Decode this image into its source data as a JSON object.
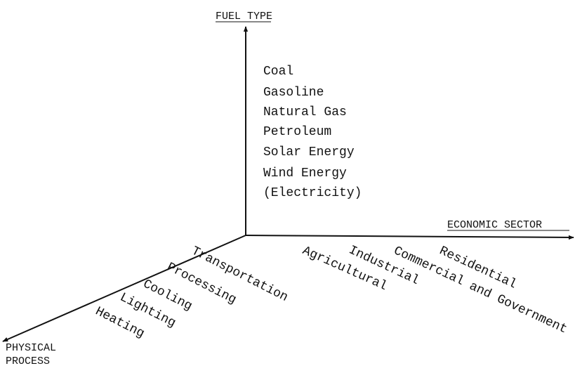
{
  "axes": {
    "fuel_type": {
      "label": "FUEL TYPE",
      "items": [
        "Coal",
        "Gasoline",
        "Natural Gas",
        "Petroleum",
        "Solar Energy",
        "Wind Energy",
        "(Electricity)"
      ]
    },
    "economic_sector": {
      "label": "ECONOMIC SECTOR",
      "items": [
        "Agricultural",
        "Industrial",
        "Commercial and Government",
        "Residential"
      ]
    },
    "physical_process": {
      "label_lines": [
        "PHYSICAL",
        "PROCESS"
      ],
      "items": [
        "Transportation",
        "Processing",
        "Cooling",
        "Lighting",
        "Heating"
      ]
    }
  }
}
